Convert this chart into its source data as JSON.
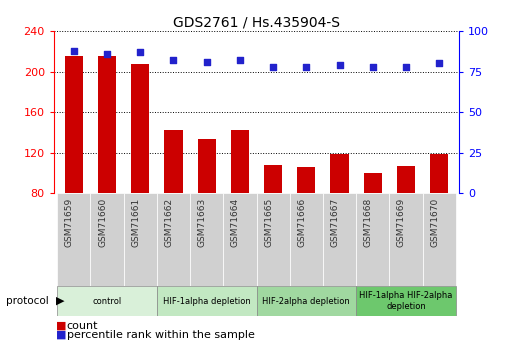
{
  "title": "GDS2761 / Hs.435904-S",
  "samples": [
    "GSM71659",
    "GSM71660",
    "GSM71661",
    "GSM71662",
    "GSM71663",
    "GSM71664",
    "GSM71665",
    "GSM71666",
    "GSM71667",
    "GSM71668",
    "GSM71669",
    "GSM71670"
  ],
  "bar_values": [
    215,
    215,
    207,
    142,
    133,
    142,
    108,
    106,
    119,
    100,
    107,
    119
  ],
  "dot_values": [
    88,
    86,
    87,
    82,
    81,
    82,
    78,
    78,
    79,
    78,
    78,
    80
  ],
  "ylim_left": [
    80,
    240
  ],
  "ylim_right": [
    0,
    100
  ],
  "yticks_left": [
    80,
    120,
    160,
    200,
    240
  ],
  "yticks_right": [
    0,
    25,
    50,
    75,
    100
  ],
  "bar_color": "#cc0000",
  "dot_color": "#2222cc",
  "protocol_groups": [
    {
      "label": "control",
      "start": 0,
      "end": 2,
      "color": "#d9f0d9"
    },
    {
      "label": "HIF-1alpha depletion",
      "start": 3,
      "end": 5,
      "color": "#c2e8c2"
    },
    {
      "label": "HIF-2alpha depletion",
      "start": 6,
      "end": 8,
      "color": "#a0d8a0"
    },
    {
      "label": "HIF-1alpha HIF-2alpha\ndepletion",
      "start": 9,
      "end": 11,
      "color": "#6dc86d"
    }
  ],
  "legend_count_label": "count",
  "legend_pct_label": "percentile rank within the sample",
  "bar_bottom": 80,
  "xtick_bg": "#d0d0d0"
}
